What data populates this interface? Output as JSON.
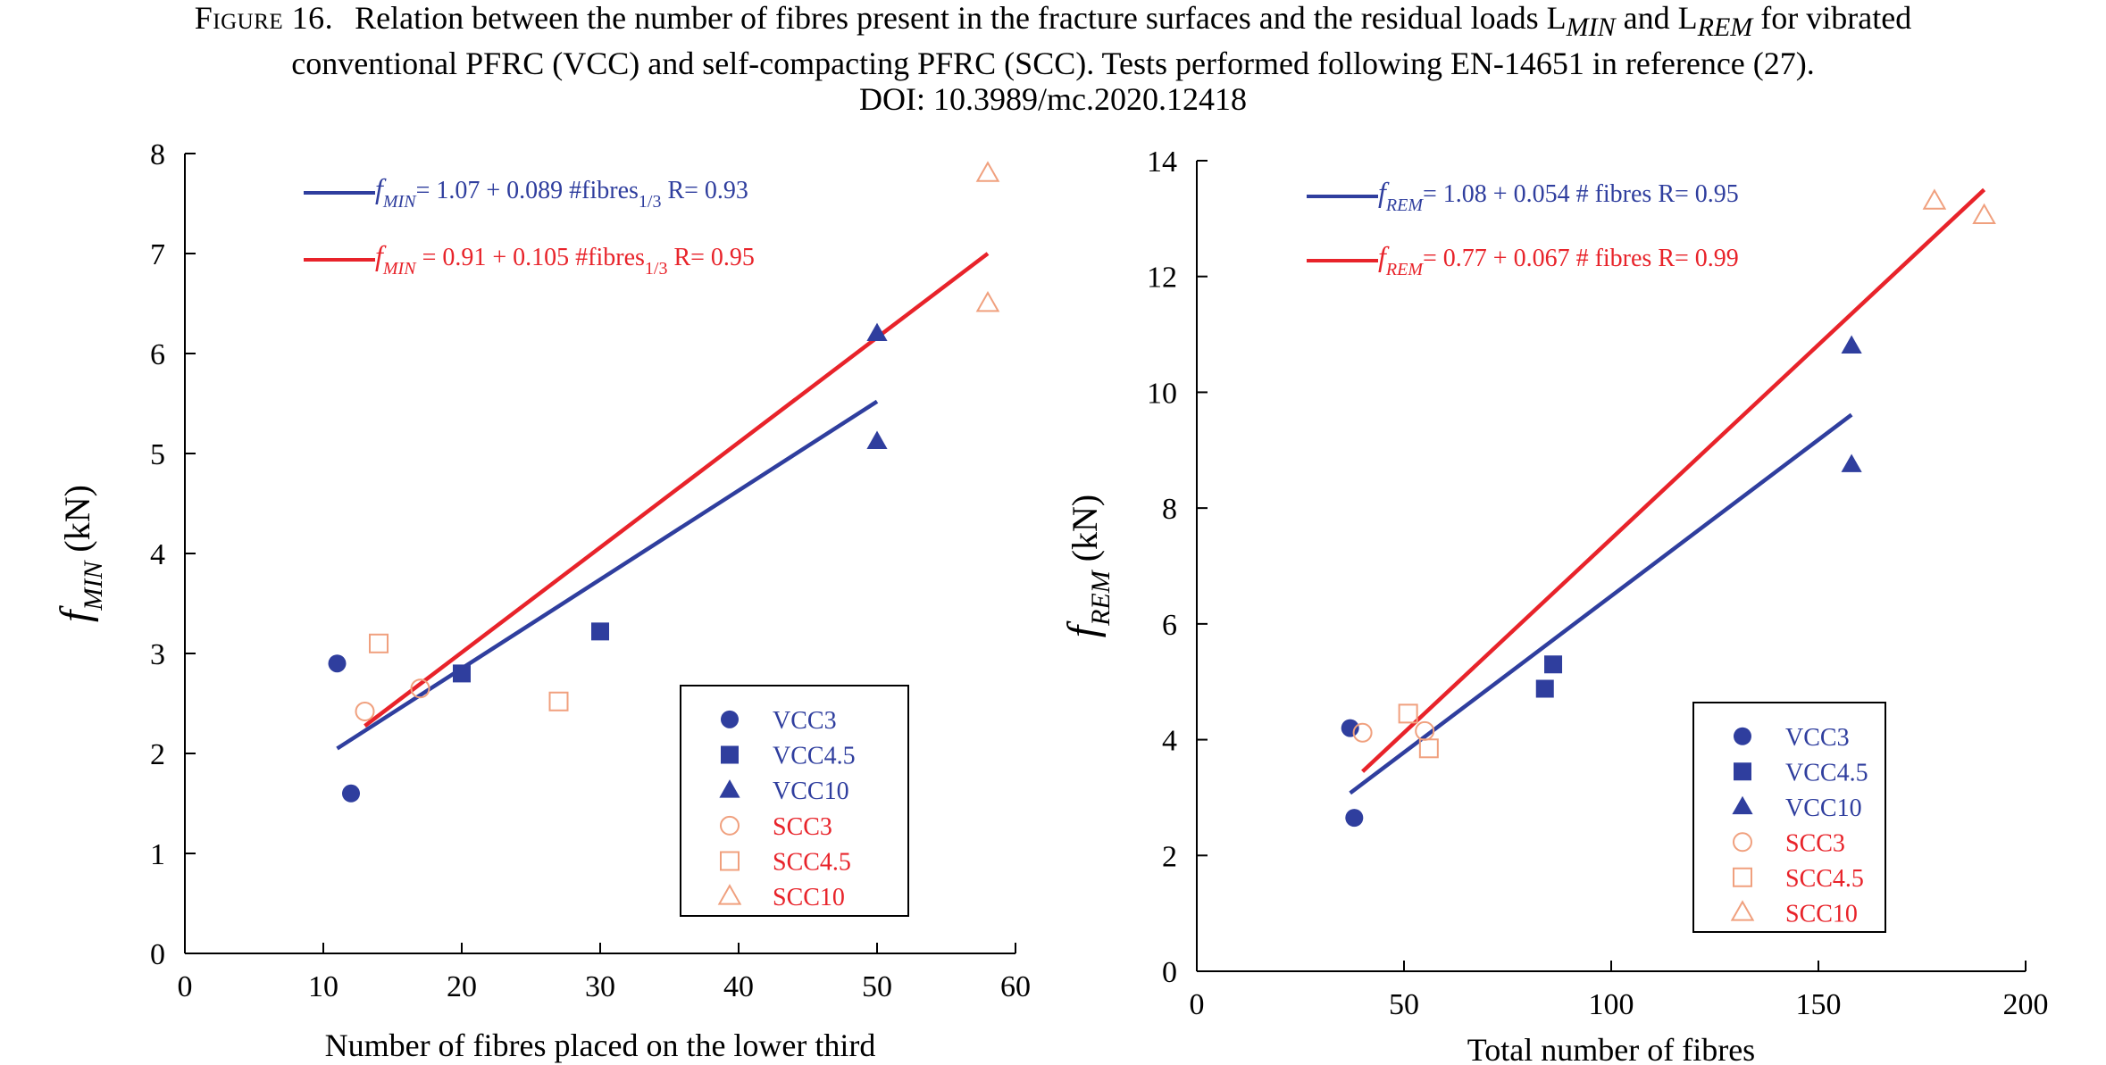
{
  "caption": {
    "label": "Figure 16.",
    "line1": "Relation between the number of fibres present in the fracture surfaces and the residual loads L",
    "line1_sub1": "MIN",
    "line1_mid": " and L",
    "line1_sub2": "REM",
    "line1_end": " for vibrated",
    "line2": "conventional PFRC (VCC) and self-compacting PFRC (SCC). Tests performed following EN-14651 in reference (27).",
    "line3": "DOI: 10.3989/mc.2020.12418"
  },
  "colors": {
    "vcc": "#2f3e9e",
    "scc_line": "#e8232a",
    "scc_marker": "#f0a07e",
    "scc_text": "#e8232a"
  },
  "chart_data": [
    {
      "type": "scatter",
      "xlabel": "Number of fibres placed on the lower third",
      "ylabel_symbol": "f",
      "ylabel_sub": "MIN",
      "ylabel_unit": " (kN)",
      "xlim": [
        0,
        60
      ],
      "ylim": [
        0,
        8
      ],
      "xticks": [
        0,
        10,
        20,
        30,
        40,
        50,
        60
      ],
      "yticks": [
        0,
        1,
        2,
        3,
        4,
        5,
        6,
        7,
        8
      ],
      "grid": false,
      "legend_position": "bottom-right",
      "series": [
        {
          "name": "VCC3",
          "marker": "circle",
          "group": "vcc",
          "points": [
            [
              11,
              2.9
            ],
            [
              12,
              1.6
            ]
          ]
        },
        {
          "name": "VCC4.5",
          "marker": "square",
          "group": "vcc",
          "points": [
            [
              20,
              2.8
            ],
            [
              30,
              3.22
            ]
          ]
        },
        {
          "name": "VCC10",
          "marker": "triangle",
          "group": "vcc",
          "points": [
            [
              50,
              6.2
            ],
            [
              50,
              5.12
            ]
          ]
        },
        {
          "name": "SCC3",
          "marker": "circle-open",
          "group": "scc",
          "points": [
            [
              13,
              2.42
            ],
            [
              17,
              2.65
            ]
          ]
        },
        {
          "name": "SCC4.5",
          "marker": "square-open",
          "group": "scc",
          "points": [
            [
              14,
              3.1
            ],
            [
              27,
              2.52
            ]
          ]
        },
        {
          "name": "SCC10",
          "marker": "triangle-open",
          "group": "scc",
          "points": [
            [
              58,
              7.8
            ],
            [
              58,
              6.5
            ]
          ]
        }
      ],
      "fits": [
        {
          "group": "vcc",
          "intercept": 1.07,
          "slope": 0.089,
          "x_range": [
            11,
            50
          ],
          "eq_symbol": "f",
          "eq_sub": "MIN",
          "eq_main": "= 1.07 + 0.089 #fibres",
          "eq_sub2": "1/3",
          "eq_r": "   R= 0.93"
        },
        {
          "group": "scc",
          "intercept": 0.91,
          "slope": 0.105,
          "x_range": [
            13,
            58
          ],
          "eq_symbol": "f",
          "eq_sub": "MIN",
          "eq_main": " = 0.91 + 0.105 #fibres",
          "eq_sub2": "1/3",
          "eq_r": "  R= 0.95"
        }
      ]
    },
    {
      "type": "scatter",
      "xlabel": "Total number of fibres",
      "ylabel_symbol": "f",
      "ylabel_sub": "REM",
      "ylabel_unit": " (kN)",
      "xlim": [
        0,
        200
      ],
      "ylim": [
        0,
        14
      ],
      "xticks": [
        0,
        50,
        100,
        150,
        200
      ],
      "yticks": [
        0,
        2,
        4,
        6,
        8,
        10,
        12,
        14
      ],
      "grid": false,
      "legend_position": "bottom-right",
      "series": [
        {
          "name": "VCC3",
          "marker": "circle",
          "group": "vcc",
          "points": [
            [
              37,
              4.2
            ],
            [
              38,
              2.65
            ]
          ]
        },
        {
          "name": "VCC4.5",
          "marker": "square",
          "group": "vcc",
          "points": [
            [
              84,
              4.88
            ],
            [
              86,
              5.3
            ]
          ]
        },
        {
          "name": "VCC10",
          "marker": "triangle",
          "group": "vcc",
          "points": [
            [
              158,
              10.8
            ],
            [
              158,
              8.75
            ]
          ]
        },
        {
          "name": "SCC3",
          "marker": "circle-open",
          "group": "scc",
          "points": [
            [
              40,
              4.12
            ],
            [
              55,
              4.15
            ]
          ]
        },
        {
          "name": "SCC4.5",
          "marker": "square-open",
          "group": "scc",
          "points": [
            [
              51,
              4.45
            ],
            [
              56,
              3.85
            ]
          ]
        },
        {
          "name": "SCC10",
          "marker": "triangle-open",
          "group": "scc",
          "points": [
            [
              178,
              13.3
            ],
            [
              190,
              13.05
            ]
          ]
        }
      ],
      "fits": [
        {
          "group": "vcc",
          "intercept": 1.08,
          "slope": 0.054,
          "x_range": [
            37,
            158
          ],
          "eq_symbol": "f",
          "eq_sub": "REM",
          "eq_main": "= 1.08 + 0.054 # fibres R= 0.95",
          "eq_sub2": "",
          "eq_r": ""
        },
        {
          "group": "scc",
          "intercept": 0.77,
          "slope": 0.067,
          "x_range": [
            40,
            190
          ],
          "eq_symbol": "f",
          "eq_sub": "REM",
          "eq_main": "= 0.77 + 0.067 # fibres  R= 0.99",
          "eq_sub2": "",
          "eq_r": ""
        }
      ]
    }
  ]
}
